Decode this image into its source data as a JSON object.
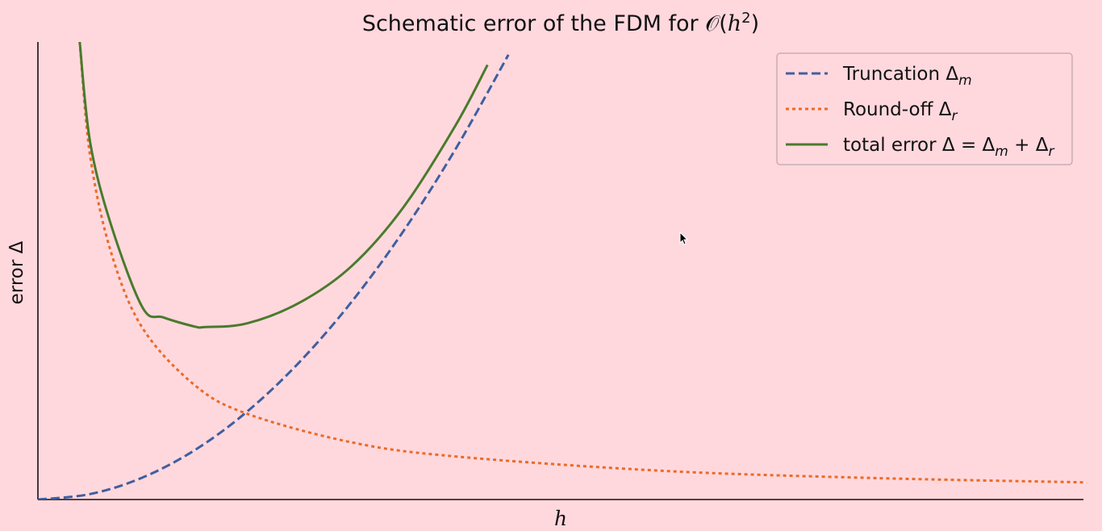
{
  "chart_data": {
    "type": "line",
    "title": "Schematic error of the FDM for 𝒪(h²)",
    "xlabel": "h",
    "ylabel": "error Δ",
    "xlim": [
      0,
      1
    ],
    "ylim": [
      0,
      1
    ],
    "grid": false,
    "legend_position": "top-right",
    "x_ticks_shown": false,
    "y_ticks_shown": false,
    "series": [
      {
        "name": "Truncation Δm",
        "style": "dashed",
        "color": "#3f5f9f",
        "x": [
          0.0,
          0.05,
          0.1,
          0.15,
          0.2,
          0.25,
          0.3,
          0.35,
          0.4,
          0.45
        ],
        "y": [
          0.0,
          0.012,
          0.048,
          0.108,
          0.192,
          0.3,
          0.432,
          0.588,
          0.768,
          0.972
        ]
      },
      {
        "name": "Round-off Δr",
        "style": "dotted",
        "color": "#ec6a25",
        "x": [
          0.04,
          0.05,
          0.07,
          0.1,
          0.15,
          0.2,
          0.3,
          0.4,
          0.6,
          0.8,
          1.0
        ],
        "y": [
          1.0,
          0.75,
          0.54,
          0.375,
          0.25,
          0.1875,
          0.125,
          0.094,
          0.0625,
          0.047,
          0.0375
        ]
      },
      {
        "name": "total error Δ = Δm + Δr",
        "style": "solid",
        "color": "#4a7a2c",
        "x": [
          0.04,
          0.05,
          0.07,
          0.1,
          0.12,
          0.15,
          0.16,
          0.2,
          0.25,
          0.3,
          0.35,
          0.4,
          0.43
        ],
        "y": [
          1.0,
          0.78,
          0.6,
          0.42,
          0.398,
          0.378,
          0.377,
          0.385,
          0.43,
          0.51,
          0.64,
          0.82,
          0.95
        ]
      }
    ]
  },
  "legend": {
    "entries": [
      {
        "base": "Truncation Δ",
        "sub": "m"
      },
      {
        "base": "Round-off Δ",
        "sub": "r"
      },
      {
        "base": "total error Δ = Δ",
        "sub": "m",
        "mid": " + Δ",
        "sub2": "r"
      }
    ]
  },
  "colors": {
    "background": "#ffd8de",
    "truncation": "#3f5f9f",
    "roundoff": "#ec6a25",
    "total": "#4a7a2c",
    "axis": "#111111",
    "legend_border": "#c9aeb2"
  }
}
